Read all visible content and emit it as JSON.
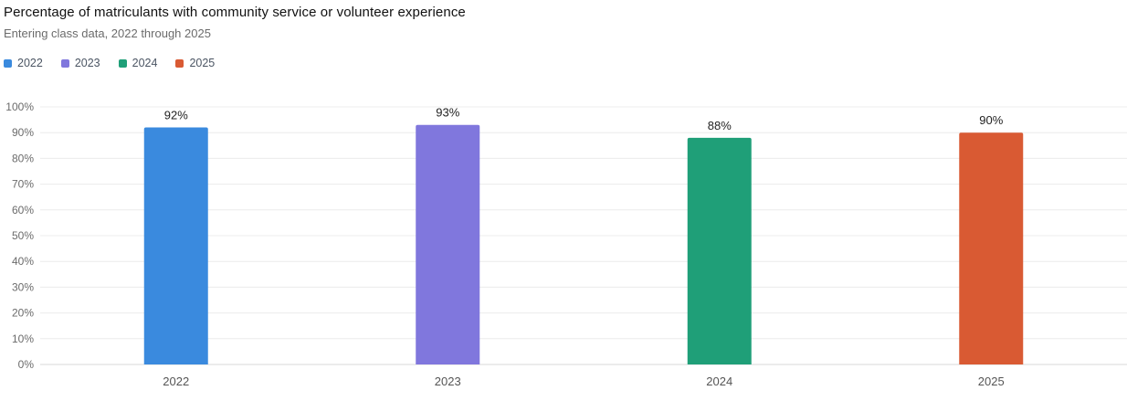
{
  "chart_data": {
    "type": "bar",
    "title": "Percentage of matriculants with community service or volunteer experience",
    "subtitle": "Entering class data, 2022 through 2025",
    "categories": [
      "2022",
      "2023",
      "2024",
      "2025"
    ],
    "values": [
      92,
      93,
      88,
      90
    ],
    "value_labels": [
      "92%",
      "93%",
      "88%",
      "90%"
    ],
    "colors": [
      "#3a8ade",
      "#8077dd",
      "#1f9f78",
      "#d95a33"
    ],
    "legend": {
      "position": "top-left",
      "entries": [
        "2022",
        "2023",
        "2024",
        "2025"
      ]
    },
    "ylim": [
      0,
      100
    ],
    "yticks": [
      "0%",
      "10%",
      "20%",
      "30%",
      "40%",
      "50%",
      "60%",
      "70%",
      "80%",
      "90%",
      "100%"
    ],
    "xlabel": "",
    "ylabel": "",
    "grid": true
  }
}
